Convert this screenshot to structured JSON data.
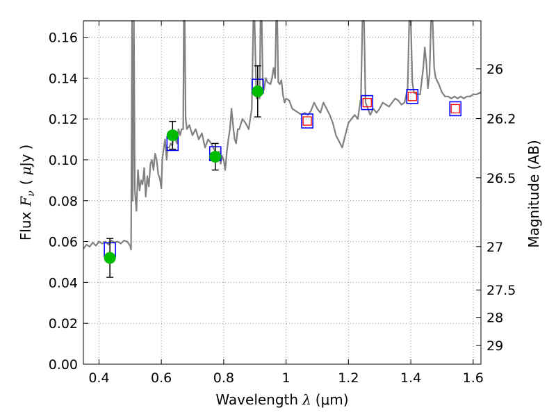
{
  "chart_data": {
    "type": "scatter",
    "title": "",
    "xlabel": "Wavelength  λ (μm)",
    "ylabel": "Flux  F_ν  ( μJy )",
    "ylabel_parts": {
      "flux": "Flux",
      "f": "F",
      "nu": "ν",
      "paren_open": "(",
      "mu": "μ",
      "unit": "Jy",
      "paren_close": ")"
    },
    "xlabel_parts": {
      "text": "Wavelength",
      "lambda": "λ",
      "unit": "(μm)"
    },
    "y2label": "Magnitude (AB)",
    "xlim": [
      0.35,
      1.625
    ],
    "ylim": [
      0.0,
      0.168
    ],
    "grid": true,
    "x_ticks": [
      {
        "value": 0.4,
        "label": "0.4"
      },
      {
        "value": 0.6,
        "label": "0.6"
      },
      {
        "value": 0.8,
        "label": "0.8"
      },
      {
        "value": 1.0,
        "label": "1"
      },
      {
        "value": 1.2,
        "label": "1.2"
      },
      {
        "value": 1.4,
        "label": "1.4"
      },
      {
        "value": 1.6,
        "label": "1.6"
      }
    ],
    "y_ticks": [
      {
        "value": 0.0,
        "label": "0.00"
      },
      {
        "value": 0.02,
        "label": "0.02"
      },
      {
        "value": 0.04,
        "label": "0.04"
      },
      {
        "value": 0.06,
        "label": "0.06"
      },
      {
        "value": 0.08,
        "label": "0.08"
      },
      {
        "value": 0.1,
        "label": "0.10"
      },
      {
        "value": 0.12,
        "label": "0.12"
      },
      {
        "value": 0.14,
        "label": "0.14"
      },
      {
        "value": 0.16,
        "label": "0.16"
      }
    ],
    "y2_ticks": [
      {
        "mag": 26,
        "label": "26"
      },
      {
        "mag": 26.2,
        "label": "26.2"
      },
      {
        "mag": 26.5,
        "label": "26.5"
      },
      {
        "mag": 27,
        "label": "27"
      },
      {
        "mag": 27.5,
        "label": "27.5"
      },
      {
        "mag": 28,
        "label": "28"
      },
      {
        "mag": 29,
        "label": "29"
      }
    ],
    "colors": {
      "spectrum": "#808080",
      "model_box": "#0000ff",
      "model_box_inner": "#ff0000",
      "observed": "#00bb00",
      "errorbar": "#000000",
      "grid": "#8c8c8c"
    },
    "spectrum": [
      [
        0.35,
        0.0565
      ],
      [
        0.36,
        0.0585
      ],
      [
        0.37,
        0.0575
      ],
      [
        0.38,
        0.0595
      ],
      [
        0.39,
        0.058
      ],
      [
        0.4,
        0.06
      ],
      [
        0.41,
        0.059
      ],
      [
        0.42,
        0.06
      ],
      [
        0.43,
        0.0585
      ],
      [
        0.44,
        0.0605
      ],
      [
        0.45,
        0.0595
      ],
      [
        0.46,
        0.06
      ],
      [
        0.47,
        0.059
      ],
      [
        0.48,
        0.0605
      ],
      [
        0.49,
        0.06
      ],
      [
        0.495,
        0.059
      ],
      [
        0.5,
        0.058
      ],
      [
        0.503,
        0.056
      ],
      [
        0.506,
        0.17
      ],
      [
        0.508,
        0.08
      ],
      [
        0.512,
        0.17
      ],
      [
        0.515,
        0.085
      ],
      [
        0.52,
        0.075
      ],
      [
        0.525,
        0.095
      ],
      [
        0.53,
        0.085
      ],
      [
        0.535,
        0.09
      ],
      [
        0.54,
        0.088
      ],
      [
        0.545,
        0.096
      ],
      [
        0.55,
        0.082
      ],
      [
        0.555,
        0.092
      ],
      [
        0.56,
        0.087
      ],
      [
        0.565,
        0.098
      ],
      [
        0.57,
        0.1
      ],
      [
        0.575,
        0.095
      ],
      [
        0.58,
        0.103
      ],
      [
        0.585,
        0.1
      ],
      [
        0.59,
        0.093
      ],
      [
        0.595,
        0.091
      ],
      [
        0.6,
        0.086
      ],
      [
        0.603,
        0.1
      ],
      [
        0.607,
        0.105
      ],
      [
        0.612,
        0.11
      ],
      [
        0.617,
        0.1
      ],
      [
        0.62,
        0.106
      ],
      [
        0.625,
        0.106
      ],
      [
        0.63,
        0.108
      ],
      [
        0.635,
        0.107
      ],
      [
        0.64,
        0.112
      ],
      [
        0.645,
        0.11
      ],
      [
        0.65,
        0.108
      ],
      [
        0.655,
        0.115
      ],
      [
        0.66,
        0.112
      ],
      [
        0.665,
        0.115
      ],
      [
        0.67,
        0.115
      ],
      [
        0.672,
        0.17
      ],
      [
        0.675,
        0.17
      ],
      [
        0.678,
        0.12
      ],
      [
        0.682,
        0.115
      ],
      [
        0.69,
        0.117
      ],
      [
        0.7,
        0.112
      ],
      [
        0.71,
        0.115
      ],
      [
        0.72,
        0.11
      ],
      [
        0.73,
        0.113
      ],
      [
        0.74,
        0.106
      ],
      [
        0.75,
        0.11
      ],
      [
        0.76,
        0.108
      ],
      [
        0.77,
        0.105
      ],
      [
        0.78,
        0.103
      ],
      [
        0.785,
        0.104
      ],
      [
        0.79,
        0.098
      ],
      [
        0.795,
        0.102
      ],
      [
        0.8,
        0.1
      ],
      [
        0.805,
        0.095
      ],
      [
        0.81,
        0.104
      ],
      [
        0.815,
        0.11
      ],
      [
        0.82,
        0.115
      ],
      [
        0.825,
        0.125
      ],
      [
        0.83,
        0.117
      ],
      [
        0.835,
        0.11
      ],
      [
        0.84,
        0.108
      ],
      [
        0.845,
        0.115
      ],
      [
        0.85,
        0.115
      ],
      [
        0.86,
        0.12
      ],
      [
        0.87,
        0.118
      ],
      [
        0.88,
        0.115
      ],
      [
        0.89,
        0.125
      ],
      [
        0.895,
        0.17
      ],
      [
        0.899,
        0.17
      ],
      [
        0.905,
        0.13
      ],
      [
        0.91,
        0.133
      ],
      [
        0.915,
        0.13
      ],
      [
        0.918,
        0.17
      ],
      [
        0.922,
        0.17
      ],
      [
        0.926,
        0.133
      ],
      [
        0.93,
        0.135
      ],
      [
        0.935,
        0.14
      ],
      [
        0.94,
        0.138
      ],
      [
        0.95,
        0.137
      ],
      [
        0.955,
        0.14
      ],
      [
        0.96,
        0.145
      ],
      [
        0.965,
        0.14
      ],
      [
        0.968,
        0.17
      ],
      [
        0.972,
        0.17
      ],
      [
        0.975,
        0.138
      ],
      [
        0.98,
        0.137
      ],
      [
        0.985,
        0.139
      ],
      [
        0.99,
        0.132
      ],
      [
        0.995,
        0.128
      ],
      [
        1.0,
        0.13
      ],
      [
        1.01,
        0.129
      ],
      [
        1.02,
        0.125
      ],
      [
        1.03,
        0.124
      ],
      [
        1.04,
        0.123
      ],
      [
        1.05,
        0.122
      ],
      [
        1.06,
        0.123
      ],
      [
        1.07,
        0.122
      ],
      [
        1.08,
        0.124
      ],
      [
        1.09,
        0.128
      ],
      [
        1.1,
        0.125
      ],
      [
        1.11,
        0.123
      ],
      [
        1.12,
        0.128
      ],
      [
        1.13,
        0.125
      ],
      [
        1.14,
        0.122
      ],
      [
        1.15,
        0.118
      ],
      [
        1.16,
        0.112
      ],
      [
        1.17,
        0.109
      ],
      [
        1.18,
        0.106
      ],
      [
        1.19,
        0.112
      ],
      [
        1.2,
        0.118
      ],
      [
        1.21,
        0.12
      ],
      [
        1.22,
        0.122
      ],
      [
        1.23,
        0.12
      ],
      [
        1.235,
        0.125
      ],
      [
        1.24,
        0.13
      ],
      [
        1.245,
        0.17
      ],
      [
        1.25,
        0.17
      ],
      [
        1.255,
        0.128
      ],
      [
        1.26,
        0.126
      ],
      [
        1.27,
        0.122
      ],
      [
        1.28,
        0.125
      ],
      [
        1.29,
        0.123
      ],
      [
        1.3,
        0.125
      ],
      [
        1.31,
        0.128
      ],
      [
        1.32,
        0.127
      ],
      [
        1.33,
        0.126
      ],
      [
        1.34,
        0.128
      ],
      [
        1.35,
        0.13
      ],
      [
        1.36,
        0.129
      ],
      [
        1.37,
        0.127
      ],
      [
        1.38,
        0.128
      ],
      [
        1.39,
        0.135
      ],
      [
        1.395,
        0.17
      ],
      [
        1.4,
        0.17
      ],
      [
        1.405,
        0.138
      ],
      [
        1.41,
        0.133
      ],
      [
        1.42,
        0.132
      ],
      [
        1.43,
        0.132
      ],
      [
        1.44,
        0.145
      ],
      [
        1.445,
        0.155
      ],
      [
        1.45,
        0.147
      ],
      [
        1.455,
        0.135
      ],
      [
        1.46,
        0.142
      ],
      [
        1.465,
        0.17
      ],
      [
        1.47,
        0.17
      ],
      [
        1.475,
        0.145
      ],
      [
        1.48,
        0.14
      ],
      [
        1.49,
        0.137
      ],
      [
        1.5,
        0.133
      ],
      [
        1.51,
        0.131
      ],
      [
        1.52,
        0.131
      ],
      [
        1.53,
        0.13
      ],
      [
        1.54,
        0.131
      ],
      [
        1.55,
        0.13
      ],
      [
        1.56,
        0.131
      ],
      [
        1.57,
        0.13
      ],
      [
        1.58,
        0.131
      ],
      [
        1.59,
        0.131
      ],
      [
        1.6,
        0.132
      ],
      [
        1.61,
        0.132
      ],
      [
        1.625,
        0.133
      ]
    ],
    "model_boxes": [
      {
        "x": 0.435,
        "y": 0.056,
        "inner": false
      },
      {
        "x": 0.636,
        "y": 0.108,
        "inner": false
      },
      {
        "x": 0.773,
        "y": 0.103,
        "inner": false
      },
      {
        "x": 0.909,
        "y": 0.136,
        "inner": false
      },
      {
        "x": 1.068,
        "y": 0.119,
        "inner": true
      },
      {
        "x": 1.26,
        "y": 0.128,
        "inner": true
      },
      {
        "x": 1.405,
        "y": 0.131,
        "inner": true
      },
      {
        "x": 1.543,
        "y": 0.125,
        "inner": true
      }
    ],
    "observed": [
      {
        "x": 0.435,
        "y": 0.052,
        "err": 0.0095
      },
      {
        "x": 0.636,
        "y": 0.112,
        "err": 0.0068
      },
      {
        "x": 0.773,
        "y": 0.1015,
        "err": 0.0065
      },
      {
        "x": 0.909,
        "y": 0.1335,
        "err": 0.0125
      }
    ]
  }
}
